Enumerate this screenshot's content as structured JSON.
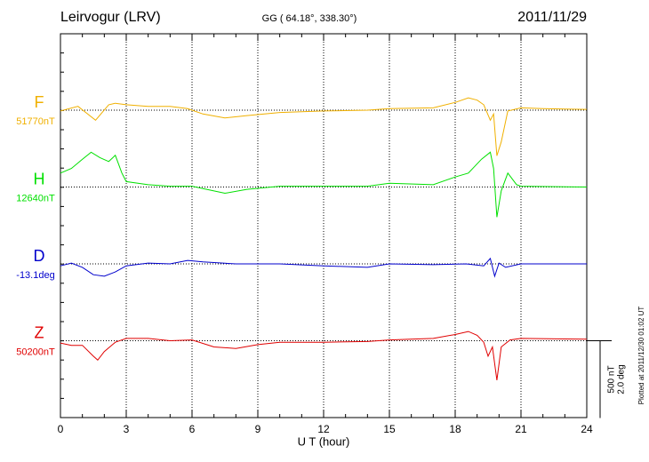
{
  "chart_data": {
    "type": "line",
    "title": "Leirvogur (LRV)",
    "subtitle": "GG ( 64.18°, 338.30°)",
    "date": "2011/11/29",
    "x_label": "U T (hour)",
    "footnote": "Plotted at 2011/12/30 01:02 UT",
    "xlim": [
      0,
      24
    ],
    "xticks": [
      0,
      3,
      6,
      9,
      12,
      15,
      18,
      21,
      24
    ],
    "grid": true,
    "scale": {
      "nT": 500,
      "nT_label": "500 nT",
      "deg": 2.0,
      "deg_label": "2.0 deg"
    },
    "series": [
      {
        "name": "F",
        "baseline_label": "51770nT",
        "color": "#f0b000",
        "x": [
          0,
          0.8,
          1.6,
          2.2,
          2.5,
          3,
          4,
          5,
          5.8,
          6.5,
          7.5,
          8.5,
          10,
          12,
          14,
          15,
          17,
          18,
          18.6,
          19,
          19.3,
          19.6,
          19.75,
          19.9,
          20.1,
          20.4,
          21,
          22,
          24
        ],
        "values": [
          -5,
          25,
          -65,
          35,
          45,
          35,
          25,
          25,
          10,
          -25,
          -50,
          -35,
          -15,
          -5,
          0,
          10,
          15,
          50,
          80,
          65,
          35,
          -65,
          -25,
          -295,
          -205,
          -5,
          15,
          10,
          5
        ]
      },
      {
        "name": "H",
        "baseline_label": "12640nT",
        "color": "#00e000",
        "x": [
          0,
          0.5,
          1,
          1.4,
          1.8,
          2.2,
          2.5,
          2.8,
          3,
          4,
          5,
          6,
          6.5,
          7.5,
          8.5,
          10,
          12,
          14,
          15,
          17,
          18,
          18.6,
          19.2,
          19.6,
          19.75,
          19.9,
          20.1,
          20.4,
          20.8,
          21,
          24
        ],
        "values": [
          90,
          120,
          180,
          225,
          190,
          165,
          205,
          90,
          35,
          15,
          5,
          5,
          -10,
          -40,
          -15,
          5,
          5,
          5,
          25,
          15,
          65,
          90,
          180,
          225,
          120,
          -195,
          -25,
          90,
          15,
          5,
          0
        ]
      },
      {
        "name": "D",
        "baseline_label": "-13.1deg",
        "color": "#0000cc",
        "x": [
          0,
          0.5,
          1,
          1.5,
          2,
          2.5,
          3,
          4,
          5,
          5.8,
          6.5,
          8,
          10,
          12,
          14,
          15,
          17,
          18.5,
          19.3,
          19.6,
          19.8,
          20,
          20.3,
          21,
          24
        ],
        "values": [
          -0.05,
          0.02,
          -0.09,
          -0.28,
          -0.32,
          -0.21,
          -0.05,
          0.02,
          0,
          0.09,
          0.05,
          0,
          0,
          -0.05,
          -0.09,
          0,
          -0.02,
          0,
          -0.05,
          0.14,
          -0.32,
          0.02,
          -0.09,
          0,
          0
        ]
      },
      {
        "name": "Z",
        "baseline_label": "50200nT",
        "color": "#e00000",
        "x": [
          0,
          0.5,
          1,
          1.5,
          1.7,
          2,
          2.5,
          3,
          4,
          5,
          6,
          7,
          8,
          9,
          10,
          12,
          14,
          15,
          17,
          18,
          18.6,
          19,
          19.3,
          19.5,
          19.7,
          19.9,
          20.1,
          20.5,
          21,
          24
        ],
        "values": [
          -15,
          -30,
          -30,
          -100,
          -125,
          -70,
          -10,
          15,
          15,
          0,
          5,
          -40,
          -50,
          -25,
          -10,
          -10,
          -5,
          5,
          15,
          40,
          60,
          35,
          -10,
          -100,
          -40,
          -255,
          -40,
          5,
          15,
          10
        ]
      }
    ]
  }
}
